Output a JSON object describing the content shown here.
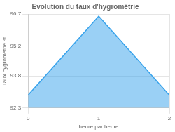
{
  "chart_data": {
    "type": "area",
    "title": "Evolution du taux d'hygrométrie",
    "xlabel": "heure par heure",
    "ylabel": "Taux hygrométrie %",
    "x": [
      0,
      1,
      2
    ],
    "values": [
      92.9,
      96.6,
      92.9
    ],
    "xlim": [
      0,
      2
    ],
    "ylim": [
      92.3,
      96.7
    ],
    "xticks": [
      0,
      1,
      2
    ],
    "yticks": [
      92.3,
      93.8,
      95.2,
      96.7
    ],
    "grid": true
  }
}
